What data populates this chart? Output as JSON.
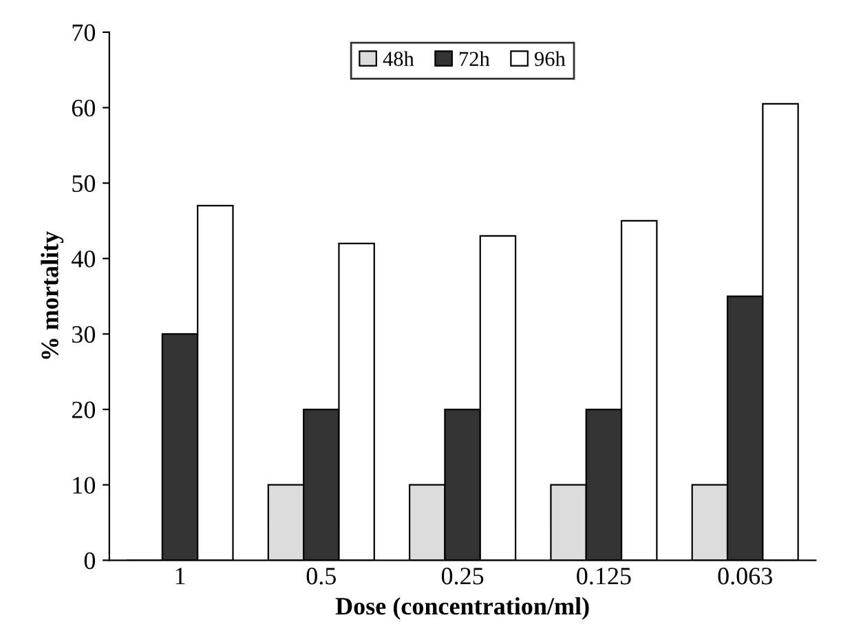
{
  "chart_data": {
    "type": "bar",
    "xlabel": "Dose (concentration/ml)",
    "ylabel": "% mortality",
    "categories": [
      "1",
      "0.5",
      "0.25",
      "0.125",
      "0.063"
    ],
    "series": [
      {
        "name": "48h",
        "color": "#dcdcdc",
        "values": [
          0,
          10,
          10,
          10,
          10
        ]
      },
      {
        "name": "72h",
        "color": "#333333",
        "values": [
          30,
          20,
          20,
          20,
          35
        ]
      },
      {
        "name": "96h",
        "color": "#ffffff",
        "values": [
          47,
          42,
          43,
          45,
          60.5
        ]
      }
    ],
    "ylim": [
      0,
      70
    ],
    "yticks": [
      0,
      10,
      20,
      30,
      40,
      50,
      60,
      70
    ],
    "grid": false,
    "legend": "top"
  }
}
